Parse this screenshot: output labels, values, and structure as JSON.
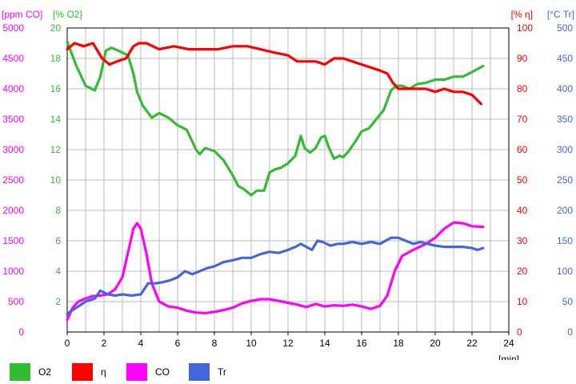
{
  "chart_data": {
    "type": "line",
    "xlabel": "[min]",
    "x_ticks": [
      0,
      2,
      4,
      6,
      8,
      10,
      12,
      14,
      16,
      18,
      20,
      22,
      24
    ],
    "xlim": [
      0,
      24
    ],
    "axes": [
      {
        "id": "co",
        "unit": "[ppm CO]",
        "color": "#ff00ff",
        "ticks": [
          0,
          500,
          1000,
          1500,
          2000,
          2500,
          3000,
          3500,
          4000,
          4500,
          5000
        ],
        "range": [
          0,
          5000
        ],
        "side": "left-outer"
      },
      {
        "id": "o2",
        "unit": "[% O2]",
        "color": "#33bb33",
        "ticks": [
          2,
          4,
          6,
          8,
          10,
          12,
          14,
          16,
          18,
          20
        ],
        "range": [
          0,
          20
        ],
        "side": "left-inner"
      },
      {
        "id": "eta",
        "unit": "[% η]",
        "color": "#ff0000",
        "ticks": [
          0,
          10,
          20,
          30,
          40,
          50,
          60,
          70,
          80,
          90,
          100
        ],
        "range": [
          0,
          100
        ],
        "side": "right-inner"
      },
      {
        "id": "tr",
        "unit": "[°C Tr]",
        "color": "#4466dd",
        "ticks": [
          0,
          50,
          100,
          150,
          200,
          250,
          300,
          350,
          400,
          450,
          500
        ],
        "range": [
          0,
          500
        ],
        "side": "right-outer"
      }
    ],
    "grid": true,
    "legend_position": "bottom",
    "series": [
      {
        "name": "O2",
        "axis": "o2",
        "color": "#33bb33",
        "x": [
          0,
          0.5,
          1,
          1.5,
          1.8,
          2.1,
          2.4,
          2.8,
          3.3,
          3.6,
          3.8,
          4.1,
          4.6,
          5.0,
          5.5,
          6.0,
          6.5,
          7.0,
          7.2,
          7.5,
          8.0,
          8.5,
          9.0,
          9.3,
          9.6,
          10.0,
          10.3,
          10.7,
          11.0,
          11.3,
          11.6,
          12.0,
          12.4,
          12.7,
          12.9,
          13.2,
          13.5,
          13.8,
          14.0,
          14.2,
          14.5,
          14.8,
          15.0,
          15.3,
          15.7,
          16.0,
          16.4,
          16.8,
          17.2,
          17.6,
          17.9,
          18.2,
          18.6,
          19.0,
          19.5,
          20.0,
          20.5,
          21.0,
          21.5,
          22.0,
          22.6
        ],
        "values": [
          19.1,
          17.5,
          16.2,
          15.9,
          16.8,
          18.5,
          18.7,
          18.5,
          18.2,
          17.0,
          15.8,
          14.9,
          14.1,
          14.4,
          14.1,
          13.6,
          13.3,
          12.0,
          11.7,
          12.1,
          11.9,
          11.3,
          10.3,
          9.6,
          9.4,
          9.0,
          9.3,
          9.3,
          10.5,
          10.7,
          10.8,
          11.1,
          11.6,
          12.9,
          12.1,
          11.8,
          12.1,
          12.8,
          12.9,
          12.2,
          11.4,
          11.6,
          11.5,
          11.9,
          12.6,
          13.2,
          13.4,
          14.0,
          14.6,
          15.9,
          16.2,
          16.2,
          16.0,
          16.3,
          16.4,
          16.6,
          16.6,
          16.8,
          16.8,
          17.1,
          17.5
        ]
      },
      {
        "name": "η",
        "axis": "eta",
        "color": "#ff0000",
        "x": [
          0,
          0.4,
          0.9,
          1.4,
          1.9,
          2.3,
          2.7,
          3.2,
          3.6,
          3.9,
          4.3,
          5.0,
          5.8,
          6.6,
          7.4,
          8.2,
          9.0,
          9.8,
          10.5,
          11.2,
          12.0,
          12.5,
          13.0,
          13.5,
          14.0,
          14.5,
          15.0,
          15.5,
          16.0,
          16.5,
          17.0,
          17.4,
          17.7,
          18.0,
          18.5,
          19.0,
          19.5,
          20.0,
          20.5,
          21.0,
          21.5,
          22.0,
          22.5
        ],
        "values": [
          93,
          95,
          94,
          95,
          90,
          88,
          89,
          90,
          94,
          95,
          95,
          93,
          94,
          93,
          93,
          93,
          94,
          94,
          93,
          92,
          91,
          89,
          89,
          89,
          88,
          90,
          90,
          89,
          88,
          87,
          86,
          85,
          82,
          80,
          80,
          80,
          80,
          79,
          80,
          79,
          79,
          78,
          75
        ]
      },
      {
        "name": "CO",
        "axis": "co",
        "color": "#ff00ff",
        "x": [
          0,
          0.3,
          0.6,
          1.0,
          1.4,
          1.8,
          2.2,
          2.6,
          3.0,
          3.3,
          3.6,
          3.8,
          4.0,
          4.3,
          4.6,
          5.0,
          5.5,
          6.0,
          6.5,
          7.0,
          7.5,
          8.0,
          8.5,
          9.0,
          9.5,
          10.0,
          10.5,
          11.0,
          11.5,
          12.0,
          12.5,
          13.0,
          13.5,
          14.0,
          14.5,
          15.0,
          15.5,
          16.0,
          16.5,
          17.0,
          17.4,
          17.8,
          18.2,
          18.8,
          19.5,
          20.0,
          20.5,
          21.0,
          21.5,
          22.0,
          22.6
        ],
        "values": [
          200,
          400,
          500,
          550,
          590,
          600,
          620,
          700,
          900,
          1300,
          1700,
          1790,
          1700,
          1300,
          800,
          500,
          420,
          400,
          350,
          320,
          310,
          330,
          360,
          400,
          470,
          510,
          540,
          540,
          510,
          480,
          450,
          410,
          460,
          420,
          440,
          430,
          450,
          420,
          380,
          430,
          600,
          1000,
          1250,
          1350,
          1450,
          1550,
          1700,
          1800,
          1790,
          1740,
          1730
        ]
      },
      {
        "name": "Tr",
        "axis": "tr",
        "color": "#4466dd",
        "x": [
          0,
          0.5,
          1.0,
          1.5,
          1.8,
          2.2,
          2.6,
          3.0,
          3.5,
          4.0,
          4.4,
          4.8,
          5.2,
          5.6,
          6.0,
          6.4,
          6.8,
          7.2,
          7.6,
          8.0,
          8.5,
          9.0,
          9.5,
          10.0,
          10.5,
          11.0,
          11.5,
          12.0,
          12.4,
          12.7,
          13.0,
          13.3,
          13.6,
          13.9,
          14.3,
          14.7,
          15.0,
          15.5,
          16.0,
          16.5,
          17.0,
          17.3,
          17.6,
          18.0,
          18.4,
          18.8,
          19.2,
          19.6,
          20.0,
          20.5,
          21.0,
          21.5,
          22.0,
          22.3,
          22.6
        ],
        "values": [
          30,
          40,
          50,
          55,
          68,
          62,
          60,
          62,
          60,
          62,
          80,
          80,
          82,
          85,
          90,
          100,
          95,
          100,
          105,
          108,
          115,
          118,
          122,
          122,
          128,
          132,
          130,
          135,
          140,
          145,
          140,
          135,
          150,
          148,
          142,
          145,
          145,
          148,
          145,
          148,
          145,
          150,
          155,
          155,
          150,
          145,
          148,
          145,
          142,
          140,
          140,
          140,
          138,
          135,
          138
        ]
      }
    ]
  },
  "legend": {
    "items": [
      {
        "label": "O2",
        "color": "#33bb33"
      },
      {
        "label": "η",
        "color": "#ff0000"
      },
      {
        "label": "CO",
        "color": "#ff00ff"
      },
      {
        "label": "Tr",
        "color": "#4466dd"
      }
    ]
  }
}
